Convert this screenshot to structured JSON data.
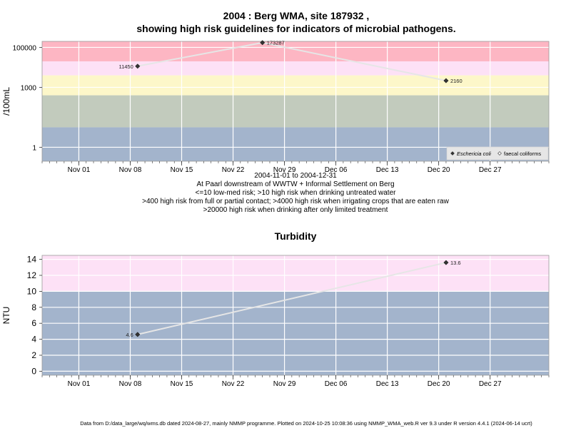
{
  "title": {
    "line1": "2004 : Berg WMA, site 187932 ,",
    "line2": "showing high risk guidelines for indicators of microbial pathogens."
  },
  "subtitle_lines": [
    "2004-11-01 to 2004-12-31",
    "At Paarl downstream of WWTW + Informal Settlement on Berg",
    "<=10 low-med risk; >10 high risk when drinking untreated water",
    ">400 high risk from full or partial contact; >4000 high risk when irrigating crops that are eaten raw",
    ">20000 high risk when drinking after only limited treatment"
  ],
  "footer": "Data from D:/data_large/wq/wms.db dated 2024-08-27, mainly NMMP programme. Plotted on 2024-10-25 10:08:36 using NMMP_WMA_web.R ver 9.3 under R version 4.4.1 (2024-06-14 ucrt)",
  "colors": {
    "band_blue": "#a3b4cc",
    "band_green": "#c2cbbd",
    "band_yellow": "#fdf7c9",
    "band_pink_light": "#fde1f6",
    "band_red": "#fdb6c3",
    "band_tan": "#d9c8b6",
    "line": "#e6e6e6",
    "grid": "#ffffff",
    "point": "#333333"
  },
  "chart_data": [
    {
      "type": "line",
      "title": "",
      "ylabel": "/100mL",
      "xlabel": "",
      "y_scale": "log10",
      "ylim": [
        0.2,
        200000
      ],
      "xlim": [
        "2004-10-27",
        "2005-01-04"
      ],
      "x_ticks": [
        "2004-11-01",
        "2004-11-08",
        "2004-11-15",
        "2004-11-22",
        "2004-11-29",
        "2004-12-06",
        "2004-12-13",
        "2004-12-20",
        "2004-12-27"
      ],
      "x_tick_labels": [
        "Nov 01",
        "Nov 08",
        "Nov 15",
        "Nov 22",
        "Nov 29",
        "Dec 06",
        "Dec 13",
        "Dec 20",
        "Dec 27"
      ],
      "y_ticks": [
        1,
        1000,
        100000
      ],
      "y_tick_labels": [
        "1",
        "1000",
        "100000"
      ],
      "grid": true,
      "bands": [
        {
          "from": 0.2,
          "to": 10,
          "color_key": "band_blue"
        },
        {
          "from": 10,
          "to": 400,
          "color_key": "band_green"
        },
        {
          "from": 400,
          "to": 4000,
          "color_key": "band_yellow"
        },
        {
          "from": 4000,
          "to": 20000,
          "color_key": "band_pink_light"
        },
        {
          "from": 20000,
          "to": 200000,
          "color_key": "band_red"
        }
      ],
      "series": [
        {
          "name": "Eschericia coli",
          "marker": "filled-diamond",
          "x": [
            "2004-11-09",
            "2004-11-26",
            "2004-12-21"
          ],
          "y": [
            11450,
            173287,
            2160
          ],
          "labels": [
            "11450",
            "173287",
            "2160"
          ],
          "label_side": [
            "left",
            "right",
            "right"
          ]
        },
        {
          "name": "faecal coliforms",
          "marker": "open-diamond",
          "x": [],
          "y": [],
          "labels": []
        }
      ],
      "legend_position": "bottom-right"
    },
    {
      "type": "line",
      "title": "Turbidity",
      "ylabel": "NTU",
      "xlabel": "",
      "y_scale": "linear",
      "ylim": [
        -0.5,
        14.5
      ],
      "xlim": [
        "2004-10-27",
        "2005-01-04"
      ],
      "x_ticks": [
        "2004-11-01",
        "2004-11-08",
        "2004-11-15",
        "2004-11-22",
        "2004-11-29",
        "2004-12-06",
        "2004-12-13",
        "2004-12-20",
        "2004-12-27"
      ],
      "x_tick_labels": [
        "Nov 01",
        "Nov 08",
        "Nov 15",
        "Nov 22",
        "Nov 29",
        "Dec 06",
        "Dec 13",
        "Dec 20",
        "Dec 27"
      ],
      "y_ticks": [
        0,
        2,
        4,
        6,
        8,
        10,
        12,
        14
      ],
      "y_tick_labels": [
        "0",
        "2",
        "4",
        "6",
        "8",
        "10",
        "12",
        "14"
      ],
      "grid": true,
      "bands": [
        {
          "from": -0.5,
          "to": 10,
          "color_key": "band_blue"
        },
        {
          "from": 10,
          "to": 14.5,
          "color_key": "band_pink_light"
        }
      ],
      "series": [
        {
          "name": "",
          "marker": "filled-diamond",
          "x": [
            "2004-11-09",
            "2004-12-21"
          ],
          "y": [
            4.6,
            13.6
          ],
          "labels": [
            "4.6",
            "13.6"
          ],
          "label_side": [
            "left",
            "right"
          ]
        }
      ]
    }
  ]
}
